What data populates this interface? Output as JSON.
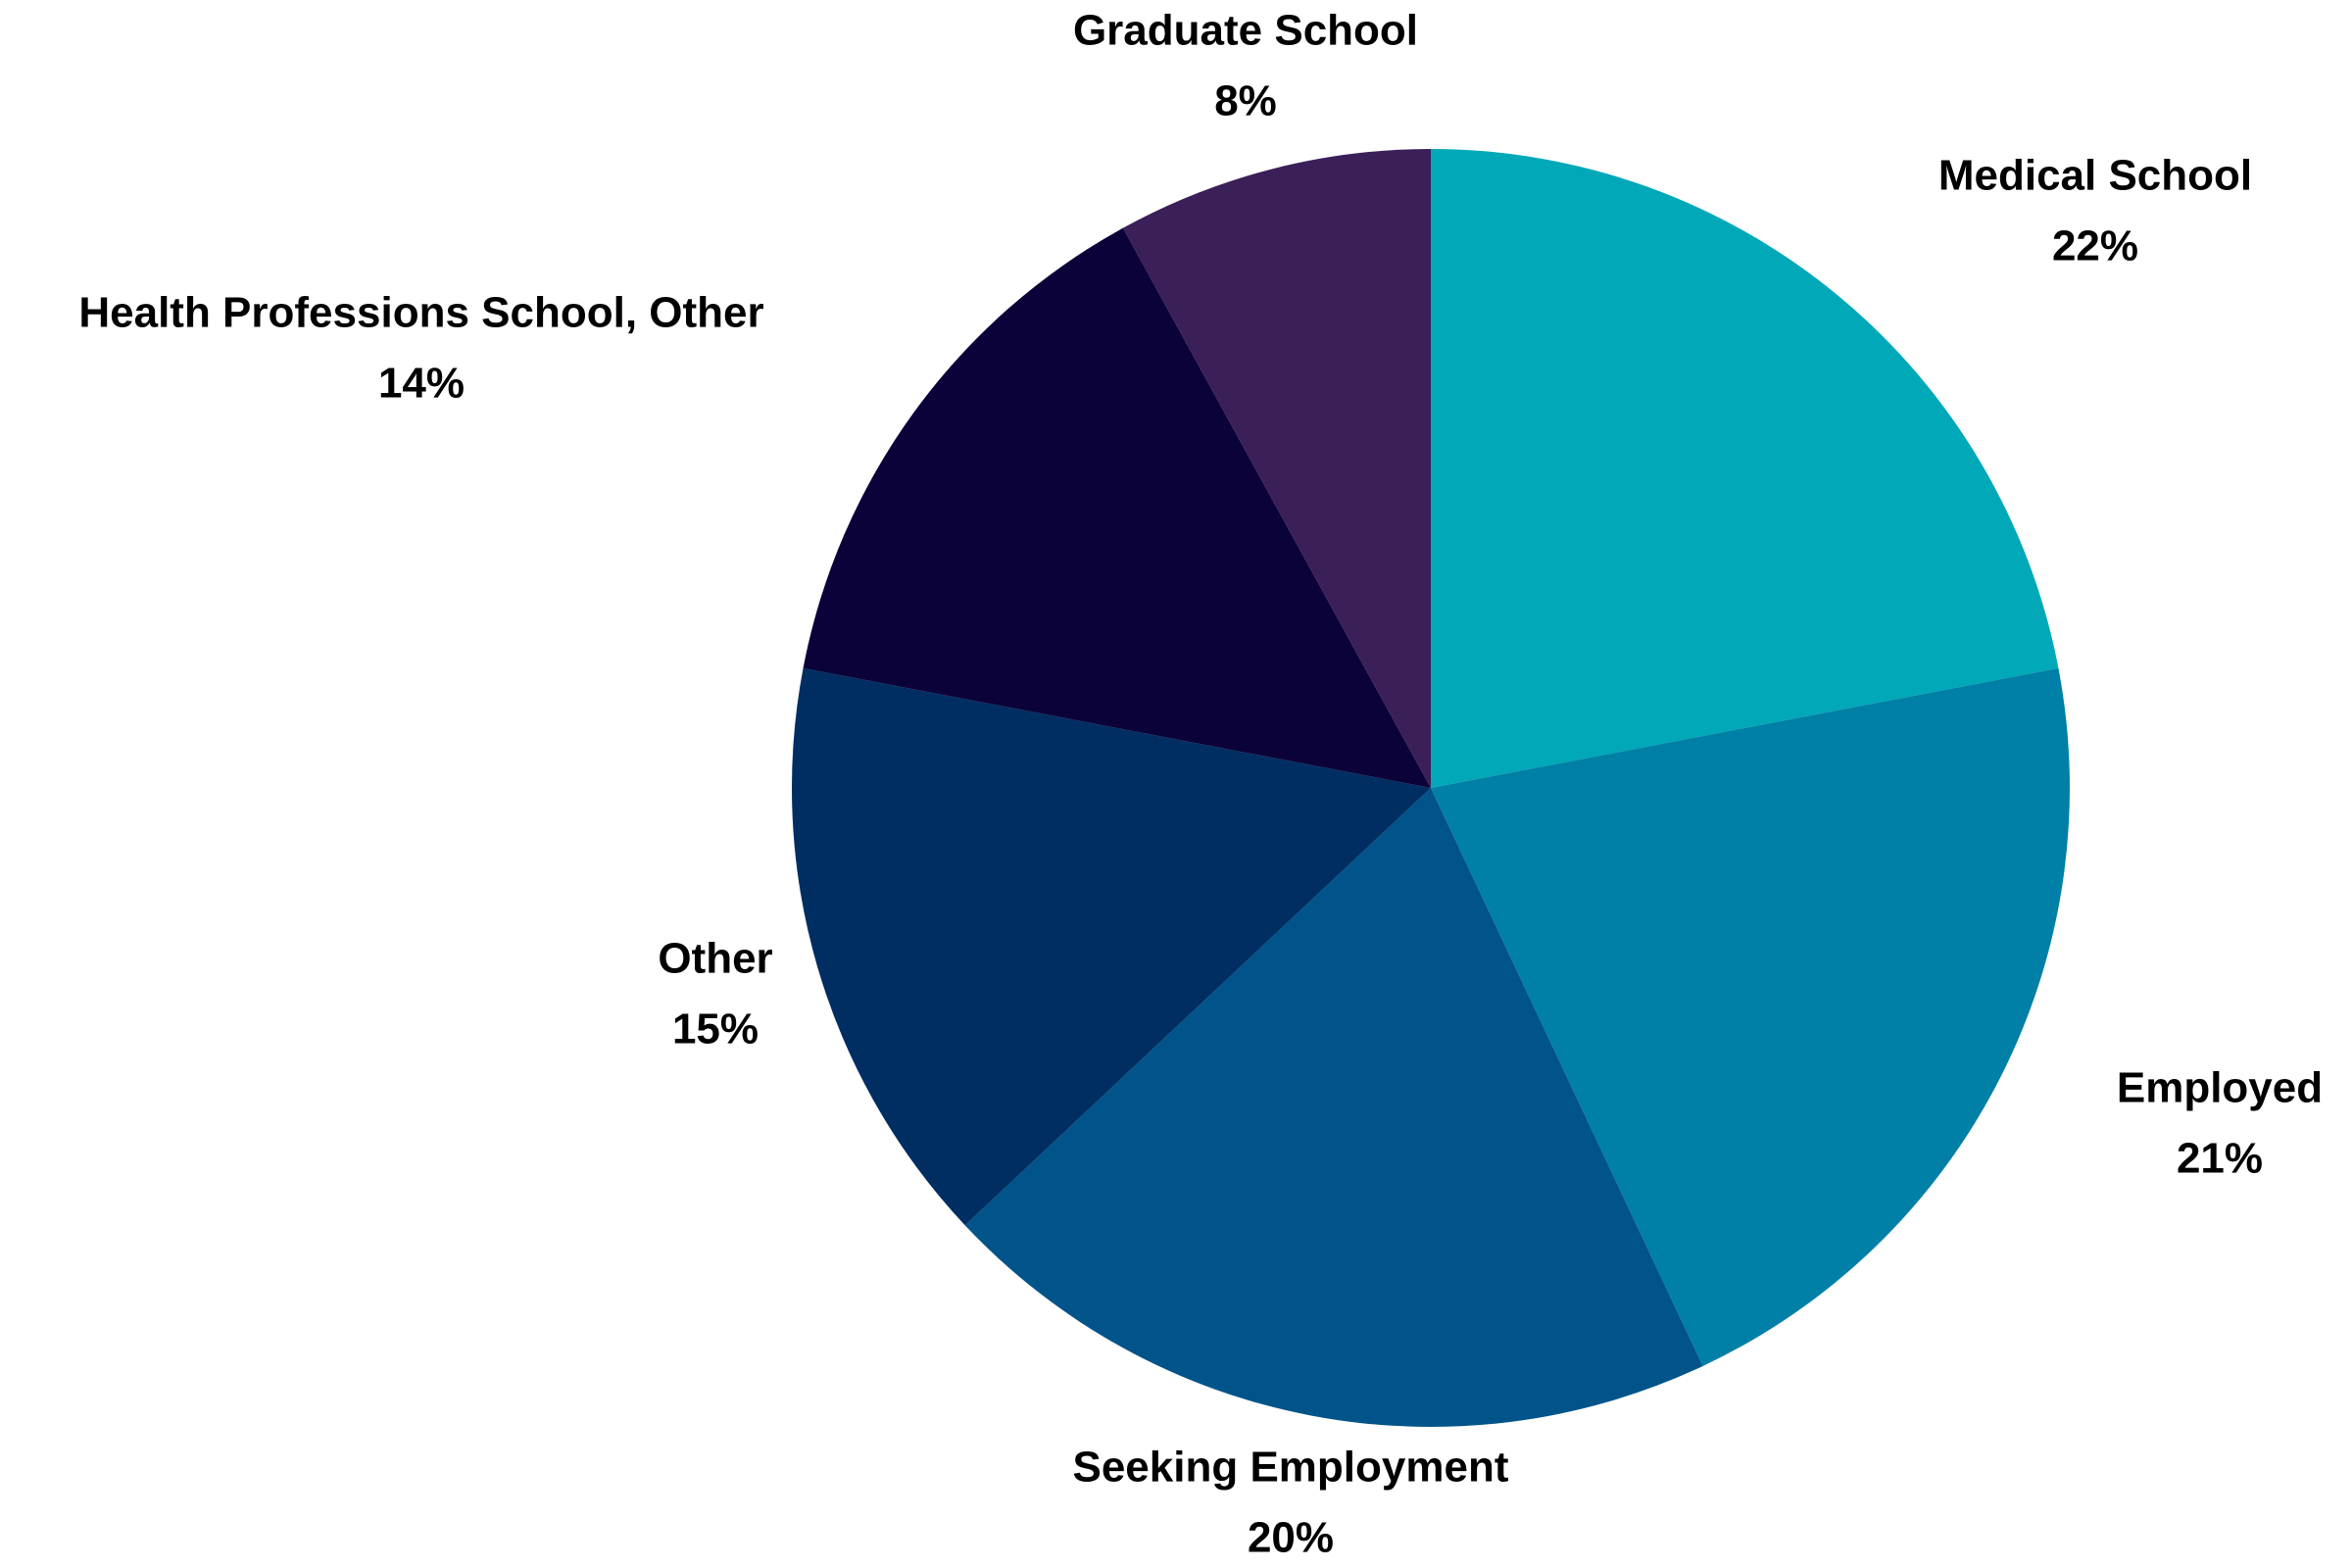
{
  "chart_data": {
    "type": "pie",
    "categories": [
      "Medical School",
      "Employed",
      "Seeking Employment",
      "Other",
      "Health Professions School, Other",
      "Graduate School"
    ],
    "values": [
      22,
      21,
      20,
      15,
      14,
      8
    ],
    "value_labels": [
      "22%",
      "21%",
      "20%",
      "15%",
      "14%",
      "8%"
    ],
    "colors": [
      "#00a8b8",
      "#0080a6",
      "#00548a",
      "#002d62",
      "#0b0239",
      "#3b1f58"
    ]
  }
}
